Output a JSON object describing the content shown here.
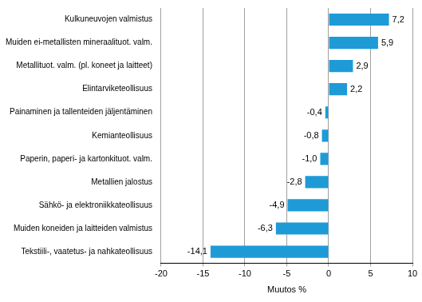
{
  "chart_data": {
    "type": "bar",
    "orientation": "horizontal",
    "categories": [
      "Kulkuneuvojen valmistus",
      "Muiden ei-metallisten mineraalituot. valm.",
      "Metallituot. valm. (pl. koneet ja laitteet)",
      "Elintarviketeollisuus",
      "Painaminen ja tallenteiden jäljentäminen",
      "Kemianteollisuus",
      "Paperin, paperi- ja kartonkituot. valm.",
      "Metallien jalostus",
      "Sähkö- ja elektroniikkateollisuus",
      "Muiden koneiden ja laitteiden valmistus",
      "Tekstiili-, vaatetus- ja nahkateollisuus"
    ],
    "values": [
      7.2,
      5.9,
      2.9,
      2.2,
      -0.4,
      -0.8,
      -1.0,
      -2.8,
      -4.9,
      -6.3,
      -14.1
    ],
    "value_labels": [
      "7,2",
      "5,9",
      "2,9",
      "2,2",
      "-0,4",
      "-0,8",
      "-1,0",
      "-2,8",
      "-4,9",
      "-6,3",
      "-14,1"
    ],
    "data_labels": true,
    "color": "#1e9bd7",
    "xlabel": "Muutos %",
    "xlim": [
      -20,
      10
    ],
    "xticks": [
      -20,
      -15,
      -10,
      -5,
      0,
      5,
      10
    ],
    "grid": true
  }
}
